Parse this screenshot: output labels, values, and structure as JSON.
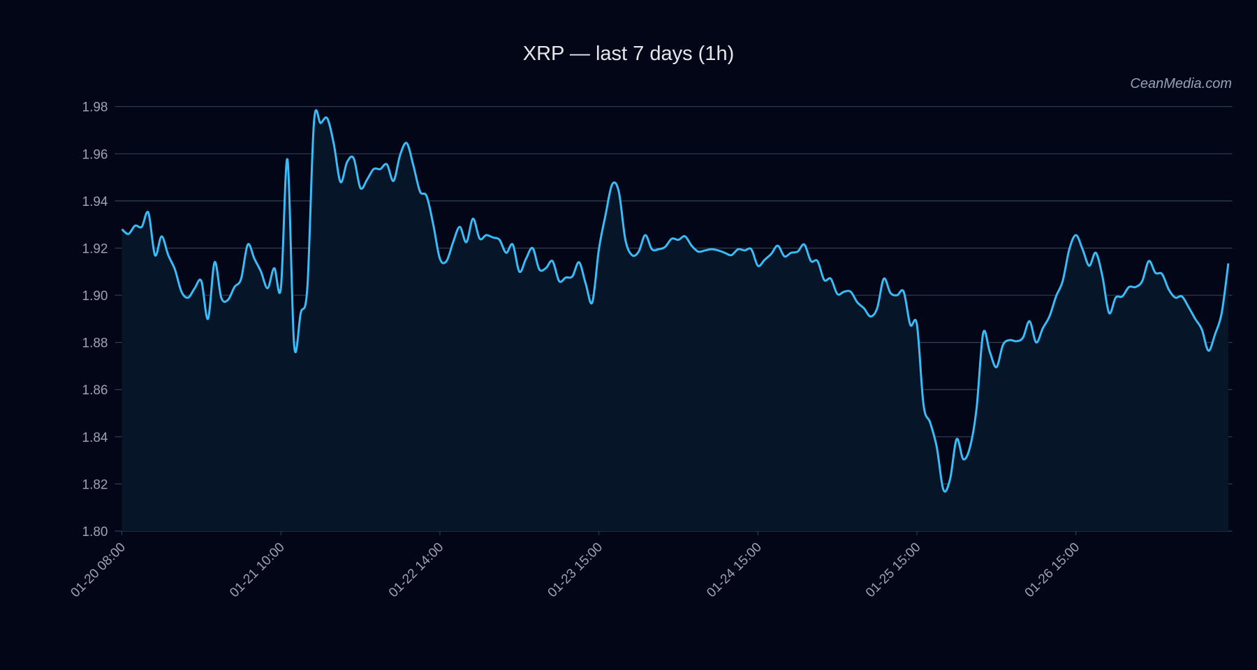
{
  "chart_data": {
    "type": "area",
    "title": "XRP — last 7 days (1h)",
    "watermark": "CeanMedia.com",
    "xlabel": "",
    "ylabel": "",
    "ylim": [
      1.8,
      1.98
    ],
    "y_ticks": [
      "1.80",
      "1.82",
      "1.84",
      "1.86",
      "1.88",
      "1.90",
      "1.92",
      "1.94",
      "1.96",
      "1.98"
    ],
    "x_ticks": [
      {
        "index": 0,
        "label": "01-20 08:00"
      },
      {
        "index": 24,
        "label": "01-21 10:00"
      },
      {
        "index": 48,
        "label": "01-22 14:00"
      },
      {
        "index": 72,
        "label": "01-23 15:00"
      },
      {
        "index": 96,
        "label": "01-24 15:00"
      },
      {
        "index": 120,
        "label": "01-25 15:00"
      },
      {
        "index": 144,
        "label": "01-26 15:00"
      }
    ],
    "grid": true,
    "colors": {
      "line": "#38bdf8",
      "fill": "#061528",
      "background": "#020617",
      "grid": "#334155"
    },
    "series": [
      {
        "values": [
          1.928,
          1.926,
          1.9295,
          1.929,
          1.935,
          1.917,
          1.925,
          1.917,
          1.911,
          1.9015,
          1.899,
          1.903,
          1.906,
          1.89,
          1.914,
          1.899,
          1.898,
          1.9035,
          1.907,
          1.9215,
          1.9155,
          1.91,
          1.903,
          1.9115,
          1.903,
          1.9575,
          1.879,
          1.8925,
          1.9035,
          1.9735,
          1.973,
          1.975,
          1.964,
          1.948,
          1.9565,
          1.958,
          1.9455,
          1.949,
          1.9535,
          1.9535,
          1.9555,
          1.9485,
          1.9595,
          1.9645,
          1.955,
          1.944,
          1.942,
          1.93,
          1.9155,
          1.9145,
          1.9225,
          1.929,
          1.9225,
          1.9325,
          1.924,
          1.9255,
          1.9245,
          1.9235,
          1.918,
          1.9215,
          1.91,
          1.9155,
          1.92,
          1.911,
          1.9115,
          1.9145,
          1.906,
          1.9075,
          1.908,
          1.914,
          1.905,
          1.897,
          1.9195,
          1.934,
          1.947,
          1.944,
          1.9235,
          1.917,
          1.9185,
          1.9255,
          1.9195,
          1.9195,
          1.9205,
          1.924,
          1.9235,
          1.925,
          1.921,
          1.9185,
          1.919,
          1.9195,
          1.919,
          1.918,
          1.917,
          1.9195,
          1.919,
          1.9195,
          1.9125,
          1.915,
          1.9175,
          1.921,
          1.9165,
          1.918,
          1.9185,
          1.9215,
          1.9145,
          1.9145,
          1.9065,
          1.907,
          1.9005,
          1.9015,
          1.9015,
          1.897,
          1.8945,
          1.891,
          1.8945,
          1.907,
          1.901,
          1.9,
          1.9015,
          1.8875,
          1.8875,
          1.8535,
          1.846,
          1.8355,
          1.8175,
          1.822,
          1.839,
          1.8305,
          1.8355,
          1.852,
          1.884,
          1.876,
          1.8695,
          1.879,
          1.881,
          1.8805,
          1.882,
          1.889,
          1.88,
          1.886,
          1.891,
          1.8995,
          1.906,
          1.9195,
          1.9255,
          1.9195,
          1.9125,
          1.918,
          1.908,
          1.8925,
          1.899,
          1.8995,
          1.9035,
          1.9035,
          1.906,
          1.9145,
          1.9095,
          1.909,
          1.9025,
          1.899,
          1.8995,
          1.895,
          1.89,
          1.8855,
          1.8765,
          1.8835,
          1.8925,
          1.9135
        ]
      }
    ]
  }
}
